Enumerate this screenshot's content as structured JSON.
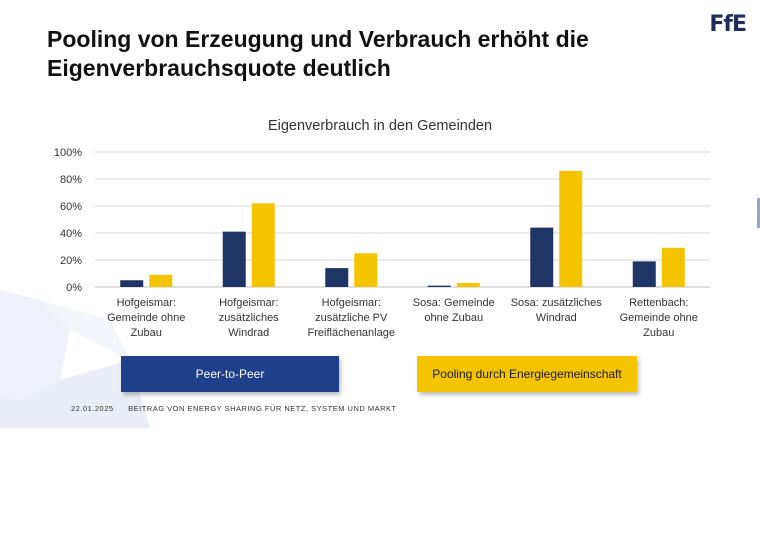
{
  "header": {
    "title_line1": "Pooling von Erzeugung und Verbrauch erhöht die",
    "title_line2": "Eigenverbrauchsquote deutlich",
    "logo_text": "FfE"
  },
  "chart_data": {
    "type": "bar",
    "title": "Eigenverbrauch in den Gemeinden",
    "categories": [
      [
        "Hofgeismar:",
        "Gemeinde ohne",
        "Zubau"
      ],
      [
        "Hofgeismar:",
        "zusätzliches",
        "Windrad"
      ],
      [
        "Hofgeismar:",
        "zusätzliche PV",
        "Freiflächenanlage"
      ],
      [
        "Sosa: Gemeinde",
        "ohne Zubau"
      ],
      [
        "Sosa: zusätzliches",
        "Windrad"
      ],
      [
        "Rettenbach:",
        "Gemeinde ohne",
        "Zubau"
      ]
    ],
    "series": [
      {
        "name": "Peer-to-Peer",
        "color": "#1f3566",
        "values": [
          5,
          41,
          14,
          1,
          44,
          19
        ]
      },
      {
        "name": "Pooling durch Energiegemeinschaft",
        "color": "#f5c400",
        "values": [
          9,
          62,
          25,
          3,
          86,
          29
        ]
      }
    ],
    "ylim": [
      0,
      100
    ],
    "yticks": [
      "0%",
      "20%",
      "40%",
      "60%",
      "80%",
      "100%"
    ],
    "grid": true,
    "legend_position": "bottom"
  },
  "legend": {
    "p2p_label": "Peer-to-Peer",
    "pool_label": "Pooling durch Energiegemeinschaft"
  },
  "footer": {
    "date": "22.01.2025",
    "text": "BEITRAG VON ENERGY SHARING FÜR NETZ, SYSTEM UND MARKT"
  }
}
